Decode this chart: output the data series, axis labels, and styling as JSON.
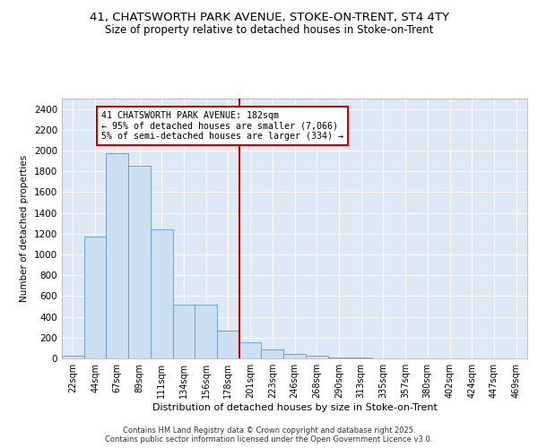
{
  "title_line1": "41, CHATSWORTH PARK AVENUE, STOKE-ON-TRENT, ST4 4TY",
  "title_line2": "Size of property relative to detached houses in Stoke-on-Trent",
  "xlabel": "Distribution of detached houses by size in Stoke-on-Trent",
  "ylabel": "Number of detached properties",
  "bin_labels": [
    "22sqm",
    "44sqm",
    "67sqm",
    "89sqm",
    "111sqm",
    "134sqm",
    "156sqm",
    "178sqm",
    "201sqm",
    "223sqm",
    "246sqm",
    "268sqm",
    "290sqm",
    "313sqm",
    "335sqm",
    "357sqm",
    "380sqm",
    "402sqm",
    "424sqm",
    "447sqm",
    "469sqm"
  ],
  "bar_values": [
    25,
    1175,
    1975,
    1855,
    1245,
    520,
    520,
    270,
    155,
    85,
    45,
    30,
    10,
    5,
    2,
    1,
    1,
    0,
    0,
    0,
    0
  ],
  "bar_color": "#ccdff0",
  "bar_edge_color": "#6699cc",
  "vline_x_index": 7,
  "vline_color": "#bb0000",
  "annotation_text": "41 CHATSWORTH PARK AVENUE: 182sqm\n← 95% of detached houses are smaller (7,066)\n5% of semi-detached houses are larger (334) →",
  "annotation_box_color": "#ffffff",
  "annotation_box_edge_color": "#cc0000",
  "ylim": [
    0,
    2500
  ],
  "yticks": [
    0,
    200,
    400,
    600,
    800,
    1000,
    1200,
    1400,
    1600,
    1800,
    2000,
    2200,
    2400
  ],
  "background_color": "#ddeaf5",
  "grid_color": "#ffffff",
  "footer_line1": "Contains HM Land Registry data © Crown copyright and database right 2025.",
  "footer_line2": "Contains public sector information licensed under the Open Government Licence v3.0."
}
